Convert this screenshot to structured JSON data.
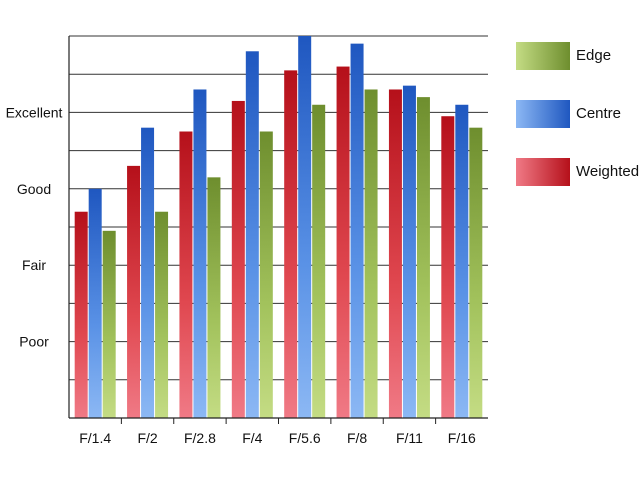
{
  "chart_data": {
    "type": "bar",
    "title": "",
    "xlabel": "",
    "ylabel": "",
    "categories": [
      "F/1.4",
      "F/2",
      "F/2.8",
      "F/4",
      "F/5.6",
      "F/8",
      "F/11",
      "F/16"
    ],
    "ylim": [
      0,
      10
    ],
    "y_ticks": [
      {
        "value": 2,
        "label": "Poor"
      },
      {
        "value": 4,
        "label": "Fair"
      },
      {
        "value": 6,
        "label": "Good"
      },
      {
        "value": 8,
        "label": "Excellent"
      }
    ],
    "grid": true,
    "legend_position": "right",
    "series": [
      {
        "name": "Weighted",
        "color": "#c0141c",
        "values": [
          5.4,
          6.6,
          7.5,
          8.3,
          9.1,
          9.2,
          8.6,
          7.9
        ]
      },
      {
        "name": "Centre",
        "color": "#2a62c8",
        "values": [
          6.0,
          7.6,
          8.6,
          9.6,
          10.0,
          9.8,
          8.7,
          8.2
        ]
      },
      {
        "name": "Edge",
        "color": "#7ea23a",
        "values": [
          4.9,
          5.4,
          6.3,
          7.5,
          8.2,
          8.6,
          8.4,
          7.6
        ]
      }
    ],
    "legend": [
      "Edge",
      "Centre",
      "Weighted"
    ]
  }
}
